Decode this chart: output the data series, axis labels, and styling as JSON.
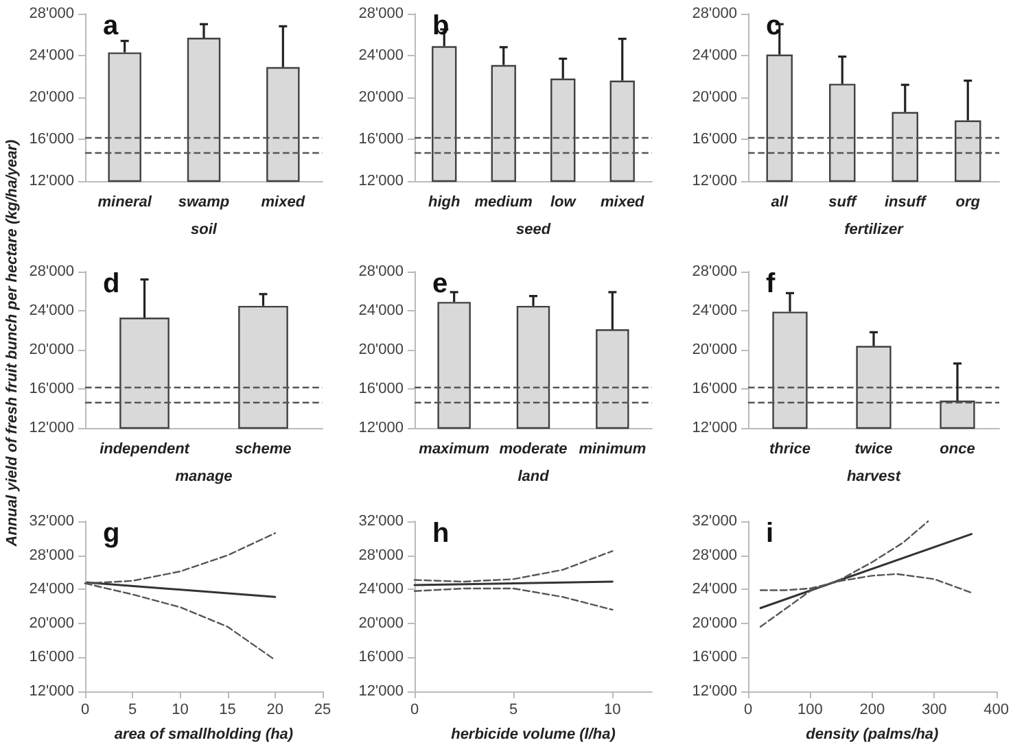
{
  "chart_data": [
    {
      "type": "bar",
      "title": "a",
      "xlabel": "soil",
      "categories": [
        "mineral",
        "swamp",
        "mixed"
      ],
      "values": [
        24300,
        25700,
        22900
      ],
      "errors": [
        [
          24300,
          25400
        ],
        [
          25700,
          27000
        ],
        [
          22900,
          26800
        ]
      ],
      "color": "#d9d9d9",
      "ylim": [
        12000,
        28000
      ],
      "yticks": [
        {
          "value": 12000,
          "label": "12'000"
        },
        {
          "value": 16000,
          "label": "16'000"
        },
        {
          "value": 20000,
          "label": "20'000"
        },
        {
          "value": 24000,
          "label": "24'000"
        },
        {
          "value": 28000,
          "label": "28'000"
        }
      ],
      "ref_lines": [
        {
          "axis": "y",
          "value": 16200,
          "line_style": "dashed",
          "color": "#555555"
        },
        {
          "axis": "y",
          "value": 14700,
          "line_style": "dashed",
          "color": "#555555"
        }
      ],
      "grid": false
    },
    {
      "type": "bar",
      "title": "b",
      "xlabel": "seed",
      "categories": [
        "high",
        "medium",
        "low",
        "mixed"
      ],
      "values": [
        24900,
        23100,
        21800,
        21600
      ],
      "errors": [
        [
          24900,
          26500
        ],
        [
          23100,
          24800
        ],
        [
          21800,
          23700
        ],
        [
          21600,
          25600
        ]
      ],
      "color": "#d9d9d9",
      "ylim": [
        12000,
        28000
      ],
      "yticks": [
        {
          "value": 12000,
          "label": "12'000"
        },
        {
          "value": 16000,
          "label": "16'000"
        },
        {
          "value": 20000,
          "label": "20'000"
        },
        {
          "value": 24000,
          "label": "24'000"
        },
        {
          "value": 28000,
          "label": "28'000"
        }
      ],
      "ref_lines": [
        {
          "axis": "y",
          "value": 16200,
          "line_style": "dashed",
          "color": "#555555"
        },
        {
          "axis": "y",
          "value": 14700,
          "line_style": "dashed",
          "color": "#555555"
        }
      ],
      "grid": false
    },
    {
      "type": "bar",
      "title": "c",
      "xlabel": "fertilizer",
      "categories": [
        "all",
        "suff",
        "insuff",
        "org"
      ],
      "values": [
        24100,
        21300,
        18600,
        17800
      ],
      "errors": [
        [
          24100,
          27000
        ],
        [
          21300,
          23900
        ],
        [
          18600,
          21200
        ],
        [
          17800,
          21600
        ]
      ],
      "color": "#d9d9d9",
      "ylim": [
        12000,
        28000
      ],
      "yticks": [
        {
          "value": 12000,
          "label": "12'000"
        },
        {
          "value": 16000,
          "label": "16'000"
        },
        {
          "value": 20000,
          "label": "20'000"
        },
        {
          "value": 24000,
          "label": "24'000"
        },
        {
          "value": 28000,
          "label": "28'000"
        }
      ],
      "ref_lines": [
        {
          "axis": "y",
          "value": 16200,
          "line_style": "dashed",
          "color": "#555555"
        },
        {
          "axis": "y",
          "value": 14700,
          "line_style": "dashed",
          "color": "#555555"
        }
      ],
      "grid": false
    },
    {
      "type": "bar",
      "title": "d",
      "xlabel": "manage",
      "ylabel": "Annual yield of fresh fruit bunch per hectare (kg/ha/year)",
      "categories": [
        "independent",
        "scheme"
      ],
      "values": [
        23300,
        24500
      ],
      "errors": [
        [
          23300,
          27200
        ],
        [
          24500,
          25700
        ]
      ],
      "color": "#d9d9d9",
      "ylim": [
        12000,
        28000
      ],
      "yticks": [
        {
          "value": 12000,
          "label": "12'000"
        },
        {
          "value": 16000,
          "label": "16'000"
        },
        {
          "value": 20000,
          "label": "20'000"
        },
        {
          "value": 24000,
          "label": "24'000"
        },
        {
          "value": 28000,
          "label": "28'000"
        }
      ],
      "ref_lines": [
        {
          "axis": "y",
          "value": 16200,
          "line_style": "dashed",
          "color": "#555555"
        },
        {
          "axis": "y",
          "value": 14700,
          "line_style": "dashed",
          "color": "#555555"
        }
      ],
      "grid": false
    },
    {
      "type": "bar",
      "title": "e",
      "xlabel": "land",
      "categories": [
        "maximum",
        "moderate",
        "minimum"
      ],
      "values": [
        24900,
        24500,
        22100
      ],
      "errors": [
        [
          24900,
          25900
        ],
        [
          24500,
          25500
        ],
        [
          22100,
          25900
        ]
      ],
      "color": "#d9d9d9",
      "ylim": [
        12000,
        28000
      ],
      "yticks": [
        {
          "value": 12000,
          "label": "12'000"
        },
        {
          "value": 16000,
          "label": "16'000"
        },
        {
          "value": 20000,
          "label": "20'000"
        },
        {
          "value": 24000,
          "label": "24'000"
        },
        {
          "value": 28000,
          "label": "28'000"
        }
      ],
      "ref_lines": [
        {
          "axis": "y",
          "value": 16200,
          "line_style": "dashed",
          "color": "#555555"
        },
        {
          "axis": "y",
          "value": 14700,
          "line_style": "dashed",
          "color": "#555555"
        }
      ],
      "grid": false
    },
    {
      "type": "bar",
      "title": "f",
      "xlabel": "harvest",
      "categories": [
        "thrice",
        "twice",
        "once"
      ],
      "values": [
        23900,
        20400,
        14800
      ],
      "errors": [
        [
          23900,
          25800
        ],
        [
          20400,
          21800
        ],
        [
          14800,
          18600
        ]
      ],
      "color": "#d9d9d9",
      "ylim": [
        12000,
        28000
      ],
      "yticks": [
        {
          "value": 12000,
          "label": "12'000"
        },
        {
          "value": 16000,
          "label": "16'000"
        },
        {
          "value": 20000,
          "label": "20'000"
        },
        {
          "value": 24000,
          "label": "24'000"
        },
        {
          "value": 28000,
          "label": "28'000"
        }
      ],
      "ref_lines": [
        {
          "axis": "y",
          "value": 16200,
          "line_style": "dashed",
          "color": "#555555"
        },
        {
          "axis": "y",
          "value": 14700,
          "line_style": "dashed",
          "color": "#555555"
        }
      ],
      "grid": false
    },
    {
      "type": "line",
      "title": "g",
      "xlabel": "area of smallholding (ha)",
      "marker": "none",
      "xlim": [
        0,
        25
      ],
      "xticks": [
        0,
        5,
        10,
        15,
        20,
        25
      ],
      "ylim": [
        12000,
        32000
      ],
      "yticks": [
        {
          "value": 12000,
          "label": "12'000"
        },
        {
          "value": 16000,
          "label": "16'000"
        },
        {
          "value": 20000,
          "label": "20'000"
        },
        {
          "value": 24000,
          "label": "24'000"
        },
        {
          "value": 28000,
          "label": "28'000"
        },
        {
          "value": 32000,
          "label": "32'000"
        }
      ],
      "grid": false,
      "series": [
        {
          "color": "#333333",
          "line_style": "solid",
          "x": [
            0.2,
            20
          ],
          "values": [
            24800,
            23100
          ]
        },
        {
          "color": "#555555",
          "line_style": "dashed",
          "x": [
            0,
            5,
            10,
            15,
            20
          ],
          "values": [
            24700,
            25000,
            26100,
            28000,
            30600
          ]
        },
        {
          "color": "#555555",
          "line_style": "dashed",
          "x": [
            0,
            5,
            10,
            15,
            20
          ],
          "values": [
            24700,
            23400,
            21900,
            19600,
            15700
          ]
        }
      ]
    },
    {
      "type": "line",
      "title": "h",
      "xlabel": "herbicide volume (l/ha)",
      "marker": "none",
      "xlim": [
        0,
        12
      ],
      "xticks": [
        0,
        5,
        10
      ],
      "ylim": [
        12000,
        32000
      ],
      "yticks": [
        {
          "value": 12000,
          "label": "12'000"
        },
        {
          "value": 16000,
          "label": "16'000"
        },
        {
          "value": 20000,
          "label": "20'000"
        },
        {
          "value": 24000,
          "label": "24'000"
        },
        {
          "value": 28000,
          "label": "28'000"
        },
        {
          "value": 32000,
          "label": "32'000"
        }
      ],
      "grid": false,
      "series": [
        {
          "color": "#333333",
          "line_style": "solid",
          "x": [
            0,
            10
          ],
          "values": [
            24500,
            24900
          ]
        },
        {
          "color": "#555555",
          "line_style": "dashed",
          "x": [
            0,
            2.5,
            5,
            7.5,
            10
          ],
          "values": [
            25100,
            24900,
            25200,
            26300,
            28500
          ]
        },
        {
          "color": "#555555",
          "line_style": "dashed",
          "x": [
            0,
            2.5,
            5,
            7.5,
            10
          ],
          "values": [
            23800,
            24100,
            24100,
            23100,
            21600
          ]
        }
      ]
    },
    {
      "type": "line",
      "title": "i",
      "xlabel": "density (palms/ha)",
      "marker": "none",
      "xlim": [
        0,
        400
      ],
      "xticks": [
        0,
        100,
        200,
        300,
        400
      ],
      "ylim": [
        12000,
        32000
      ],
      "yticks": [
        {
          "value": 12000,
          "label": "12'000"
        },
        {
          "value": 16000,
          "label": "16'000"
        },
        {
          "value": 20000,
          "label": "20'000"
        },
        {
          "value": 24000,
          "label": "24'000"
        },
        {
          "value": 28000,
          "label": "28'000"
        },
        {
          "value": 32000,
          "label": "32'000"
        }
      ],
      "grid": false,
      "series": [
        {
          "color": "#333333",
          "line_style": "solid",
          "x": [
            20,
            360
          ],
          "values": [
            21800,
            30500
          ]
        },
        {
          "color": "#555555",
          "line_style": "dashed",
          "x": [
            20,
            100,
            150,
            200,
            250,
            290
          ],
          "values": [
            19600,
            23800,
            25200,
            27200,
            29500,
            32000
          ]
        },
        {
          "color": "#555555",
          "line_style": "dashed",
          "x": [
            20,
            60,
            100,
            150,
            200,
            240,
            300,
            360
          ],
          "values": [
            23900,
            23900,
            24100,
            25000,
            25600,
            25800,
            25200,
            23600
          ]
        }
      ]
    }
  ]
}
